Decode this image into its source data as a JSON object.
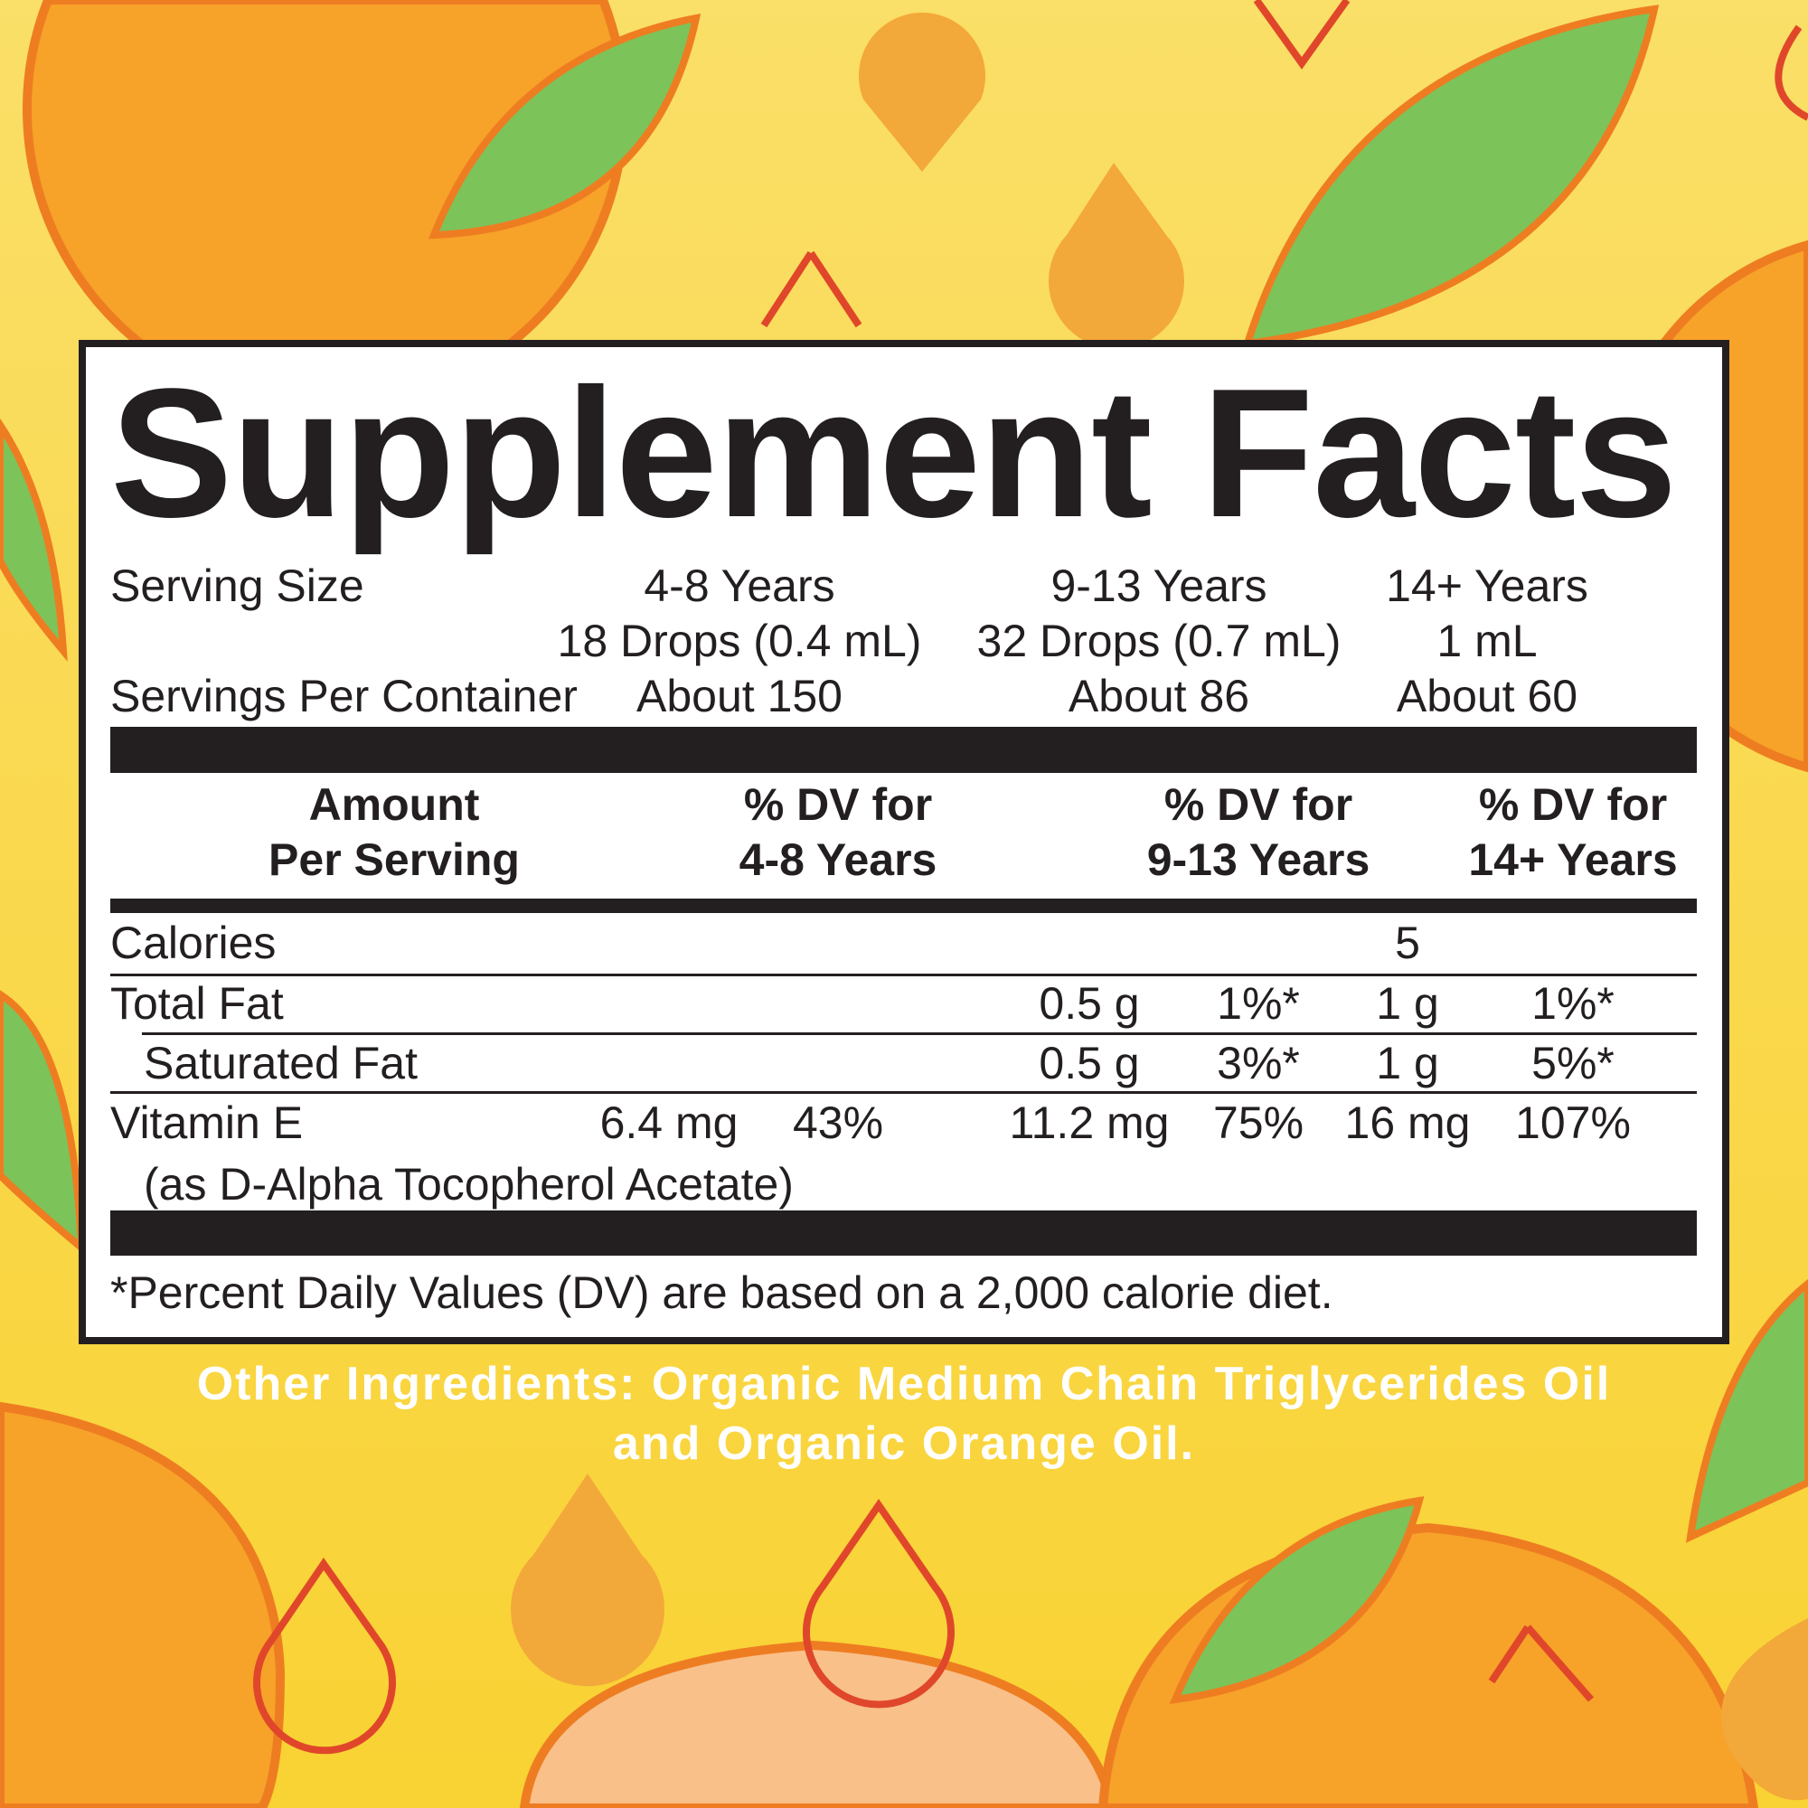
{
  "title": "Supplement Facts",
  "serving": {
    "serving_size_label": "Serving Size",
    "servings_per_container_label": "Servings Per Container",
    "groups": [
      {
        "age": "4-8 Years",
        "size": "18 Drops (0.4 mL)",
        "servings": "About 150"
      },
      {
        "age": "9-13 Years",
        "size": "32 Drops (0.7 mL)",
        "servings": "About 86"
      },
      {
        "age": "14+ Years",
        "size": "1 mL",
        "servings": "About 60"
      }
    ]
  },
  "header": {
    "amount_line1": "Amount",
    "amount_line2": "Per Serving",
    "dv": [
      {
        "line1": "% DV for",
        "line2": "4-8 Years"
      },
      {
        "line1": "% DV for",
        "line2": "9-13 Years"
      },
      {
        "line1": "% DV for",
        "line2": "14+ Years"
      }
    ]
  },
  "rows": {
    "calories": {
      "label": "Calories",
      "value": "5"
    },
    "total_fat": {
      "label": "Total Fat",
      "amt_9_13": "0.5 g",
      "dv_9_13": "1%*",
      "amt_14": "1 g",
      "dv_14": "1%*"
    },
    "saturated_fat": {
      "label": "Saturated Fat",
      "amt_9_13": "0.5 g",
      "dv_9_13": "3%*",
      "amt_14": "1 g",
      "dv_14": "5%*"
    },
    "vitamin_e": {
      "label": "Vitamin E",
      "sublabel": "(as D-Alpha Tocopherol Acetate)",
      "amt_4_8": "6.4 mg",
      "dv_4_8": "43%",
      "amt_9_13": "11.2 mg",
      "dv_9_13": "75%",
      "amt_14": "16 mg",
      "dv_14": "107%"
    }
  },
  "footnote": "*Percent Daily Values (DV) are based on a 2,000 calorie diet.",
  "other_ingredients": {
    "line1": "Other Ingredients: Organic Medium Chain Triglycerides Oil",
    "line2": "and Organic Orange Oil."
  },
  "colors": {
    "background": "#f9d84c",
    "orange": "#f7a229",
    "leaf": "#7cc35a",
    "drop_outline": "#e0472a",
    "ink": "#231f20"
  }
}
